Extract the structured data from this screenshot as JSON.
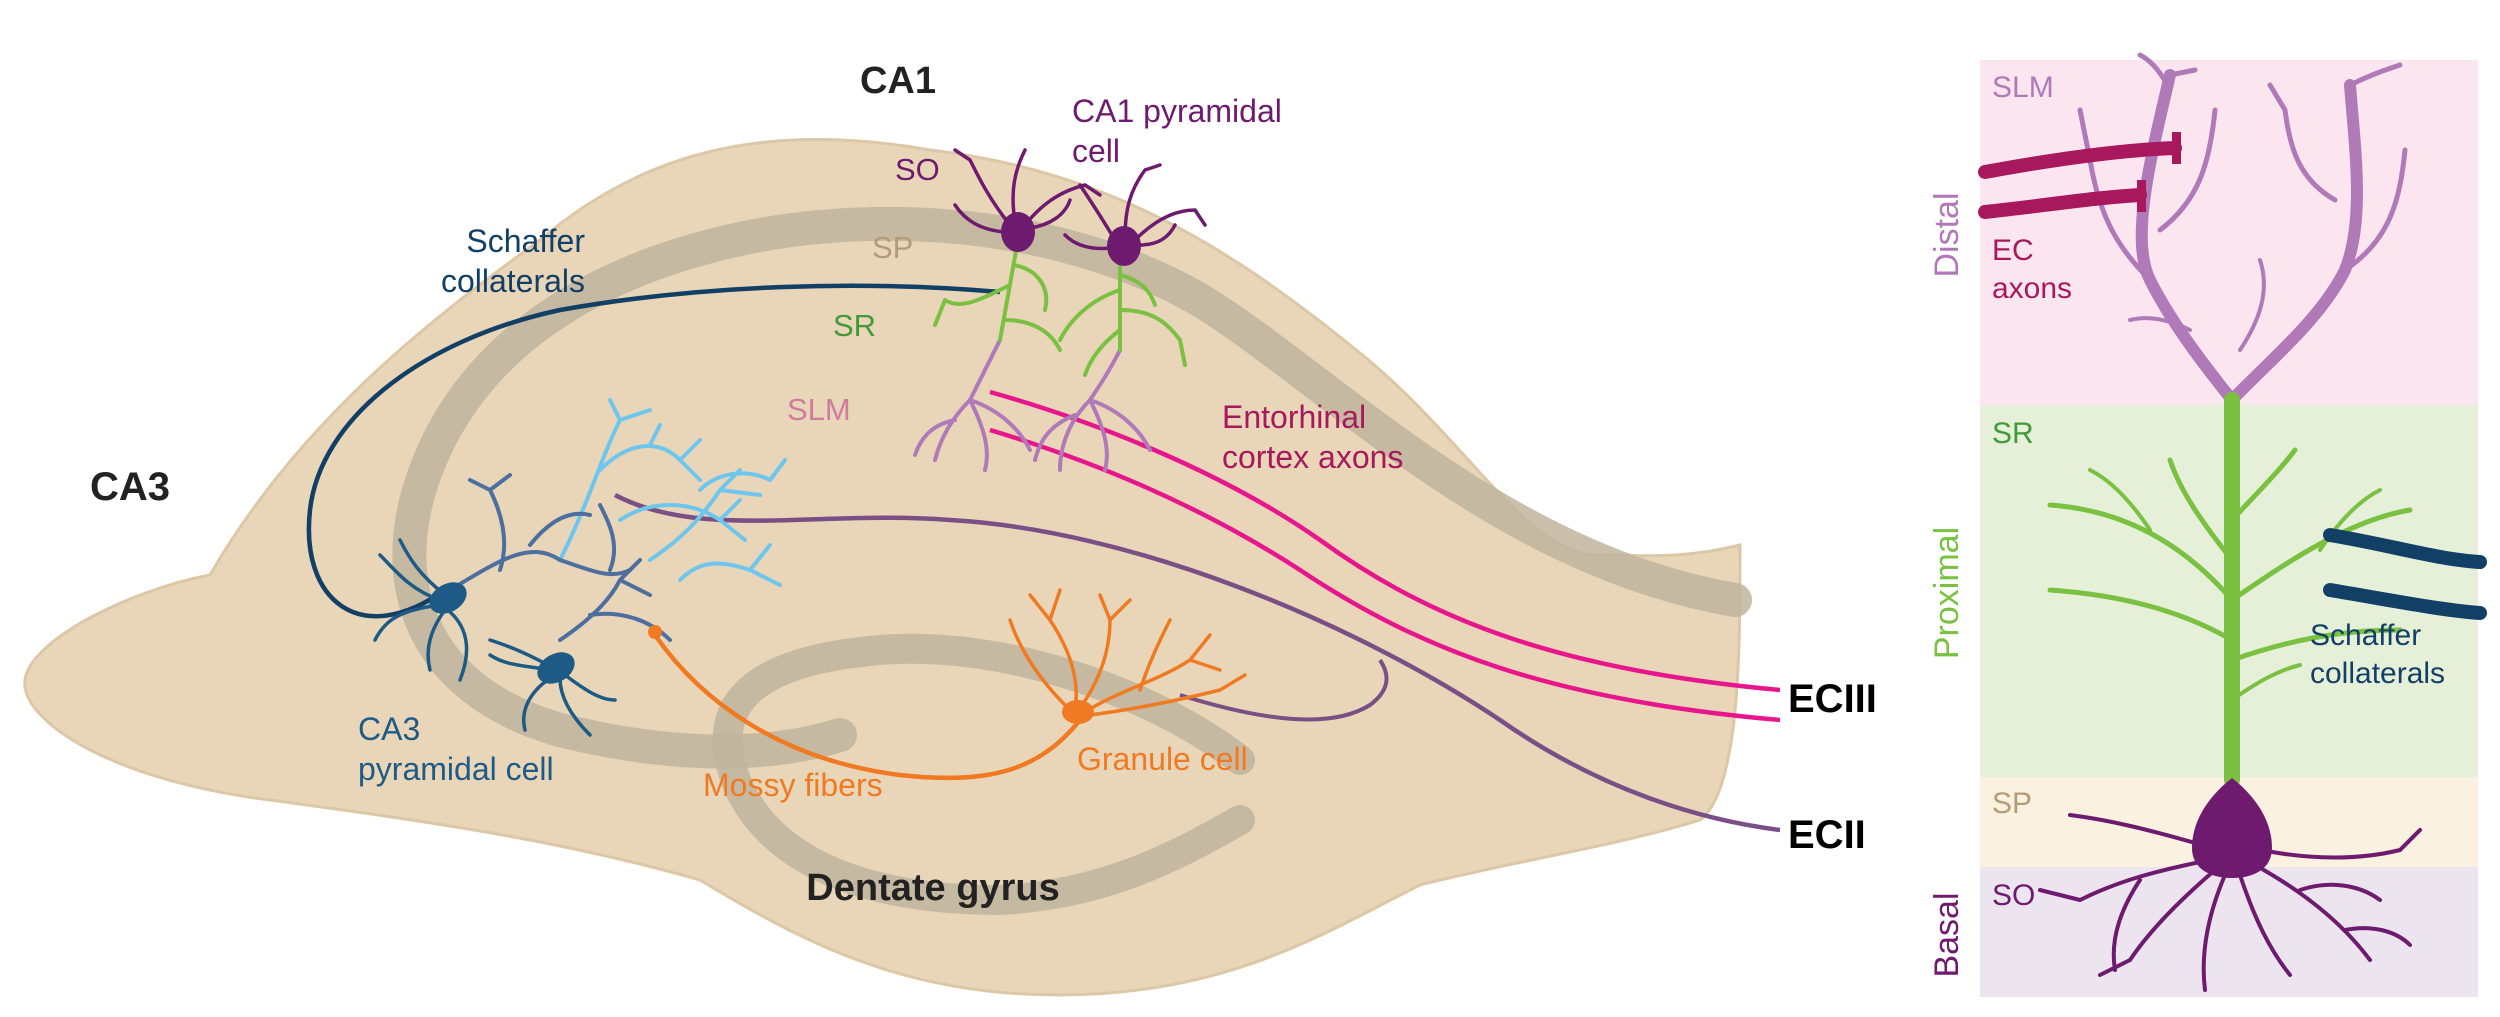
{
  "hippocampus": {
    "regions": {
      "ca1": "CA1",
      "ca3": "CA3",
      "dentate_gyrus": "Dentate gyrus"
    },
    "layers": {
      "so": "SO",
      "sp": "SP",
      "sr": "SR",
      "slm": "SLM"
    },
    "cells": {
      "ca1_pyramidal_line1": "CA1 pyramidal",
      "ca1_pyramidal_line2": "cell",
      "ca3_pyramidal_line1": "CA3",
      "ca3_pyramidal_line2": "pyramidal cell",
      "granule": "Granule cell"
    },
    "pathways": {
      "schaffer_line1": "Schaffer",
      "schaffer_line2": "collaterals",
      "entorhinal_line1": "Entorhinal",
      "entorhinal_line2": "cortex axons",
      "mossy": "Mossy fibers"
    },
    "inputs": {
      "eciii": "ECIII",
      "ecii": "ECII"
    }
  },
  "dendrite_panel": {
    "layers": {
      "slm": "SLM",
      "sr": "SR",
      "sp": "SP",
      "so": "SO"
    },
    "compartments": {
      "distal": "Distal",
      "proximal": "Proximal",
      "basal": "Basal"
    },
    "inputs": {
      "ec_line1": "EC",
      "ec_line2": "axons",
      "schaffer_line1": "Schaffer",
      "schaffer_line2": "collaterals"
    }
  },
  "colors": {
    "tissue": "#e9d6b9",
    "layer_band": "#bfb49c",
    "ca1_cell": "#6e1a6e",
    "ca3_cell": "#1d5a85",
    "ca3_dendrite_light": "#6ec6ee",
    "schaffer": "#123f66",
    "sr_dendrite": "#7ac142",
    "slm_dendrite": "#b07ab8",
    "ec_axon": "#e8168c",
    "ecii_axon": "#7a4f86",
    "mossy": "#f07a22",
    "slm_band": "#fbe6f0",
    "sr_band": "#e6f0d9",
    "sp_band": "#fbf1e0",
    "so_band": "#ece4ef"
  }
}
